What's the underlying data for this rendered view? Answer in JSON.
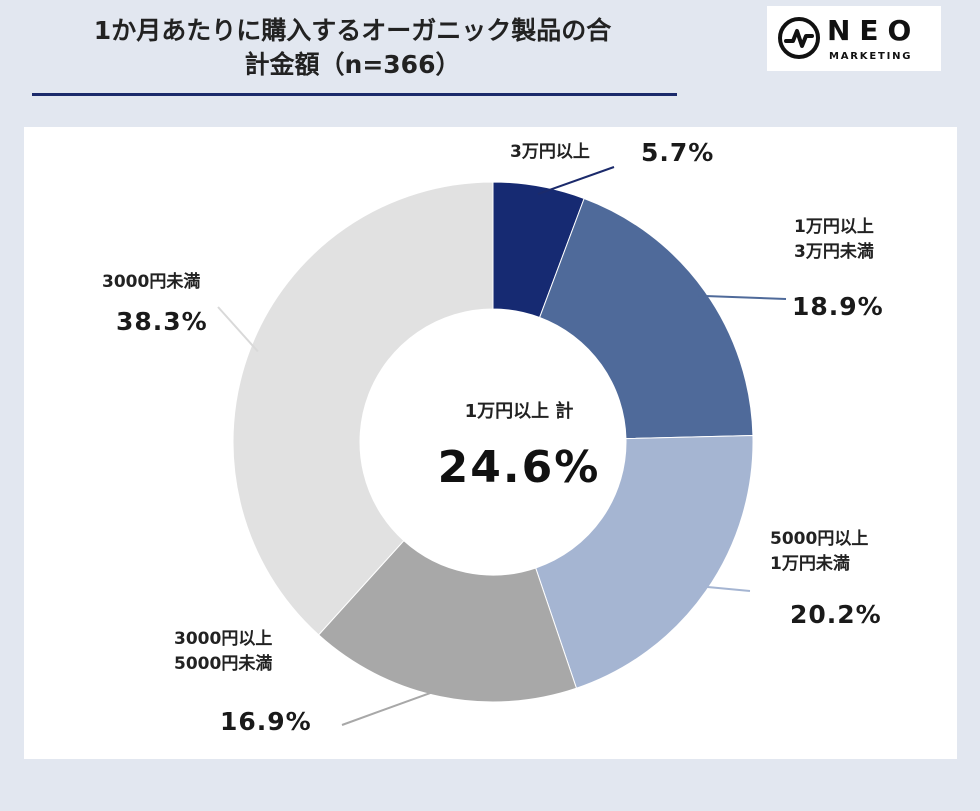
{
  "header": {
    "title_line1": "1か月あたりに購入するオーガニック製品の合",
    "title_line2": "計金額（n=366）"
  },
  "logo": {
    "word": "NEO",
    "sub": "MARKETING",
    "icon": "wave-circle-icon"
  },
  "chart_data": {
    "type": "pie",
    "title": "1か月あたりに購入するオーガニック製品の合計金額（n=366）",
    "variant": "donut",
    "unit": "%",
    "slices": [
      {
        "label_lines": [
          "3万円以上"
        ],
        "value": 5.7,
        "value_text": "5.7%",
        "color": "#162a72"
      },
      {
        "label_lines": [
          "1万円以上",
          "3万円未満"
        ],
        "value": 18.9,
        "value_text": "18.9%",
        "color": "#4f6a9a"
      },
      {
        "label_lines": [
          "5000円以上",
          "1万円未満"
        ],
        "value": 20.2,
        "value_text": "20.2%",
        "color": "#a5b5d2"
      },
      {
        "label_lines": [
          "3000円以上",
          "5000円未満"
        ],
        "value": 16.9,
        "value_text": "16.9%",
        "color": "#a8a8a8"
      },
      {
        "label_lines": [
          "3000円未満"
        ],
        "value": 38.3,
        "value_text": "38.3%",
        "color": "#e1e1e1"
      }
    ],
    "center_label": "1万円以上 計",
    "center_value": "24.6%"
  }
}
